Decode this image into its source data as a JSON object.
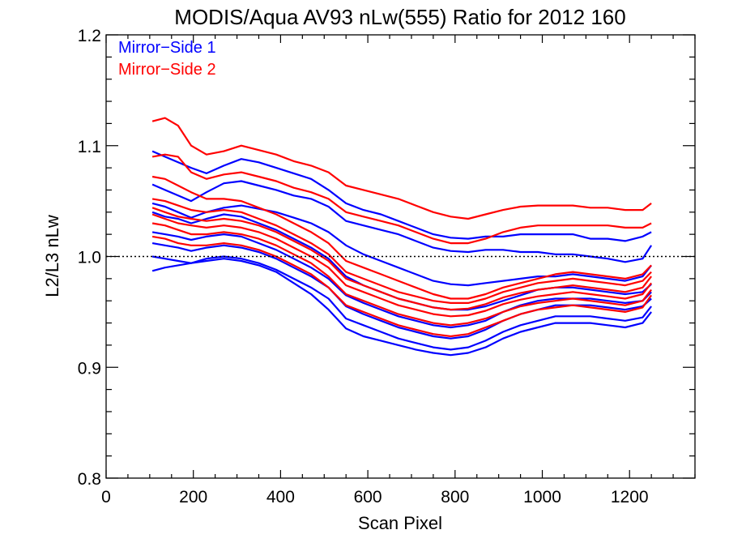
{
  "chart_data": {
    "type": "line",
    "title": "MODIS/Aqua AV93 nLw(555) Ratio for 2012 160",
    "xlabel": "Scan Pixel",
    "ylabel": "L2/L3 nLw",
    "xlim": [
      0,
      1350
    ],
    "ylim": [
      0.8,
      1.2
    ],
    "xticks": [
      0,
      200,
      400,
      600,
      800,
      1000,
      1200
    ],
    "xtick_labels": [
      "0",
      "200",
      "400",
      "600",
      "800",
      "1000",
      "1200"
    ],
    "yticks": [
      0.8,
      0.9,
      1.0,
      1.1,
      1.2
    ],
    "ytick_labels": [
      "0.8",
      "0.9",
      "1.0",
      "1.1",
      "1.2"
    ],
    "x_minor_step": 50,
    "y_minor_step": 0.02,
    "reference_line": 1.0,
    "grid": false,
    "legend_position": "top-left",
    "legend": [
      {
        "label": "Mirror−Side 1",
        "color": "#0000ff"
      },
      {
        "label": "Mirror−Side 2",
        "color": "#ff0000"
      }
    ],
    "x": [
      106,
      135,
      165,
      195,
      230,
      270,
      310,
      350,
      390,
      430,
      470,
      510,
      550,
      590,
      630,
      670,
      710,
      750,
      790,
      830,
      870,
      910,
      950,
      990,
      1030,
      1070,
      1110,
      1150,
      1190,
      1230,
      1250
    ],
    "series": [
      {
        "group": 1,
        "color": "#0000ff",
        "values": [
          1.095,
          1.09,
          1.085,
          1.08,
          1.075,
          1.082,
          1.088,
          1.085,
          1.08,
          1.075,
          1.07,
          1.06,
          1.048,
          1.042,
          1.038,
          1.032,
          1.026,
          1.02,
          1.017,
          1.016,
          1.018,
          1.018,
          1.02,
          1.02,
          1.02,
          1.02,
          1.016,
          1.016,
          1.014,
          1.018,
          1.022
        ]
      },
      {
        "group": 1,
        "color": "#0000ff",
        "values": [
          1.065,
          1.06,
          1.055,
          1.05,
          1.058,
          1.066,
          1.068,
          1.064,
          1.06,
          1.055,
          1.052,
          1.045,
          1.032,
          1.028,
          1.024,
          1.02,
          1.014,
          1.008,
          1.005,
          1.004,
          1.006,
          1.006,
          1.004,
          1.004,
          1.002,
          1.002,
          1.0,
          0.998,
          0.995,
          0.998,
          1.01
        ]
      },
      {
        "group": 1,
        "color": "#0000ff",
        "values": [
          1.048,
          1.045,
          1.04,
          1.035,
          1.04,
          1.044,
          1.046,
          1.043,
          1.04,
          1.035,
          1.03,
          1.022,
          1.01,
          1.002,
          0.996,
          0.99,
          0.984,
          0.978,
          0.975,
          0.974,
          0.976,
          0.978,
          0.98,
          0.982,
          0.982,
          0.984,
          0.982,
          0.98,
          0.978,
          0.982,
          0.992
        ]
      },
      {
        "group": 1,
        "color": "#0000ff",
        "values": [
          1.04,
          1.036,
          1.034,
          1.03,
          1.034,
          1.038,
          1.036,
          1.03,
          1.024,
          1.016,
          1.008,
          0.998,
          0.982,
          0.974,
          0.968,
          0.962,
          0.958,
          0.954,
          0.952,
          0.952,
          0.955,
          0.96,
          0.965,
          0.97,
          0.972,
          0.972,
          0.97,
          0.968,
          0.966,
          0.968,
          0.975
        ]
      },
      {
        "group": 1,
        "color": "#0000ff",
        "values": [
          1.022,
          1.02,
          1.018,
          1.015,
          1.018,
          1.02,
          1.018,
          1.012,
          1.006,
          0.998,
          0.99,
          0.98,
          0.965,
          0.958,
          0.952,
          0.946,
          0.942,
          0.938,
          0.936,
          0.938,
          0.942,
          0.95,
          0.956,
          0.96,
          0.962,
          0.962,
          0.962,
          0.96,
          0.958,
          0.96,
          0.968
        ]
      },
      {
        "group": 1,
        "color": "#0000ff",
        "values": [
          1.012,
          1.01,
          1.008,
          1.005,
          1.008,
          1.01,
          1.008,
          1.004,
          0.998,
          0.99,
          0.982,
          0.972,
          0.955,
          0.948,
          0.942,
          0.936,
          0.932,
          0.928,
          0.926,
          0.928,
          0.934,
          0.942,
          0.948,
          0.952,
          0.956,
          0.956,
          0.956,
          0.954,
          0.952,
          0.955,
          0.962
        ]
      },
      {
        "group": 1,
        "color": "#0000ff",
        "values": [
          1.0,
          0.998,
          0.996,
          0.994,
          0.998,
          1.0,
          0.998,
          0.994,
          0.988,
          0.98,
          0.972,
          0.962,
          0.944,
          0.938,
          0.932,
          0.926,
          0.922,
          0.918,
          0.916,
          0.918,
          0.924,
          0.932,
          0.938,
          0.942,
          0.946,
          0.946,
          0.946,
          0.944,
          0.942,
          0.945,
          0.955
        ]
      },
      {
        "group": 1,
        "color": "#0000ff",
        "values": [
          0.987,
          0.99,
          0.992,
          0.994,
          0.996,
          0.998,
          0.996,
          0.992,
          0.986,
          0.976,
          0.966,
          0.952,
          0.935,
          0.928,
          0.924,
          0.92,
          0.916,
          0.913,
          0.911,
          0.913,
          0.918,
          0.926,
          0.932,
          0.936,
          0.94,
          0.94,
          0.94,
          0.938,
          0.936,
          0.94,
          0.95
        ]
      },
      {
        "group": 2,
        "color": "#ff0000",
        "values": [
          1.122,
          1.125,
          1.118,
          1.1,
          1.092,
          1.095,
          1.1,
          1.096,
          1.092,
          1.086,
          1.082,
          1.076,
          1.064,
          1.06,
          1.056,
          1.052,
          1.046,
          1.04,
          1.036,
          1.034,
          1.038,
          1.042,
          1.045,
          1.046,
          1.046,
          1.046,
          1.044,
          1.044,
          1.042,
          1.042,
          1.048
        ]
      },
      {
        "group": 2,
        "color": "#ff0000",
        "values": [
          1.09,
          1.092,
          1.09,
          1.076,
          1.07,
          1.074,
          1.076,
          1.072,
          1.068,
          1.062,
          1.058,
          1.052,
          1.04,
          1.036,
          1.032,
          1.028,
          1.022,
          1.016,
          1.012,
          1.012,
          1.016,
          1.022,
          1.026,
          1.028,
          1.028,
          1.028,
          1.028,
          1.028,
          1.026,
          1.026,
          1.03
        ]
      },
      {
        "group": 2,
        "color": "#ff0000",
        "values": [
          1.072,
          1.07,
          1.064,
          1.058,
          1.052,
          1.052,
          1.05,
          1.044,
          1.038,
          1.03,
          1.022,
          1.012,
          0.996,
          0.99,
          0.984,
          0.978,
          0.972,
          0.966,
          0.962,
          0.962,
          0.966,
          0.972,
          0.976,
          0.98,
          0.984,
          0.986,
          0.984,
          0.982,
          0.98,
          0.984,
          0.992
        ]
      },
      {
        "group": 2,
        "color": "#ff0000",
        "values": [
          1.052,
          1.05,
          1.046,
          1.042,
          1.04,
          1.042,
          1.04,
          1.034,
          1.028,
          1.02,
          1.012,
          1.002,
          0.986,
          0.98,
          0.974,
          0.968,
          0.964,
          0.96,
          0.958,
          0.958,
          0.962,
          0.968,
          0.972,
          0.976,
          0.978,
          0.98,
          0.978,
          0.976,
          0.974,
          0.978,
          0.986
        ]
      },
      {
        "group": 2,
        "color": "#ff0000",
        "values": [
          1.044,
          1.04,
          1.036,
          1.034,
          1.032,
          1.034,
          1.032,
          1.028,
          1.022,
          1.014,
          1.006,
          0.996,
          0.98,
          0.974,
          0.968,
          0.962,
          0.958,
          0.954,
          0.952,
          0.953,
          0.957,
          0.963,
          0.967,
          0.97,
          0.972,
          0.974,
          0.972,
          0.97,
          0.968,
          0.972,
          0.982
        ]
      },
      {
        "group": 2,
        "color": "#ff0000",
        "values": [
          1.038,
          1.034,
          1.03,
          1.028,
          1.026,
          1.028,
          1.026,
          1.022,
          1.016,
          1.008,
          1.0,
          0.99,
          0.974,
          0.968,
          0.962,
          0.956,
          0.952,
          0.948,
          0.946,
          0.947,
          0.951,
          0.957,
          0.961,
          0.964,
          0.966,
          0.968,
          0.966,
          0.964,
          0.962,
          0.966,
          0.976
        ]
      },
      {
        "group": 2,
        "color": "#ff0000",
        "values": [
          1.03,
          1.028,
          1.024,
          1.02,
          1.02,
          1.022,
          1.02,
          1.016,
          1.01,
          1.002,
          0.994,
          0.982,
          0.966,
          0.96,
          0.954,
          0.948,
          0.944,
          0.94,
          0.938,
          0.94,
          0.944,
          0.95,
          0.955,
          0.958,
          0.96,
          0.962,
          0.96,
          0.958,
          0.956,
          0.96,
          0.97
        ]
      },
      {
        "group": 2,
        "color": "#ff0000",
        "values": [
          1.018,
          1.016,
          1.012,
          1.01,
          1.01,
          1.012,
          1.01,
          1.006,
          1.0,
          0.992,
          0.984,
          0.972,
          0.956,
          0.95,
          0.944,
          0.938,
          0.934,
          0.93,
          0.928,
          0.93,
          0.936,
          0.942,
          0.948,
          0.952,
          0.954,
          0.956,
          0.954,
          0.952,
          0.95,
          0.954,
          0.965
        ]
      }
    ]
  }
}
